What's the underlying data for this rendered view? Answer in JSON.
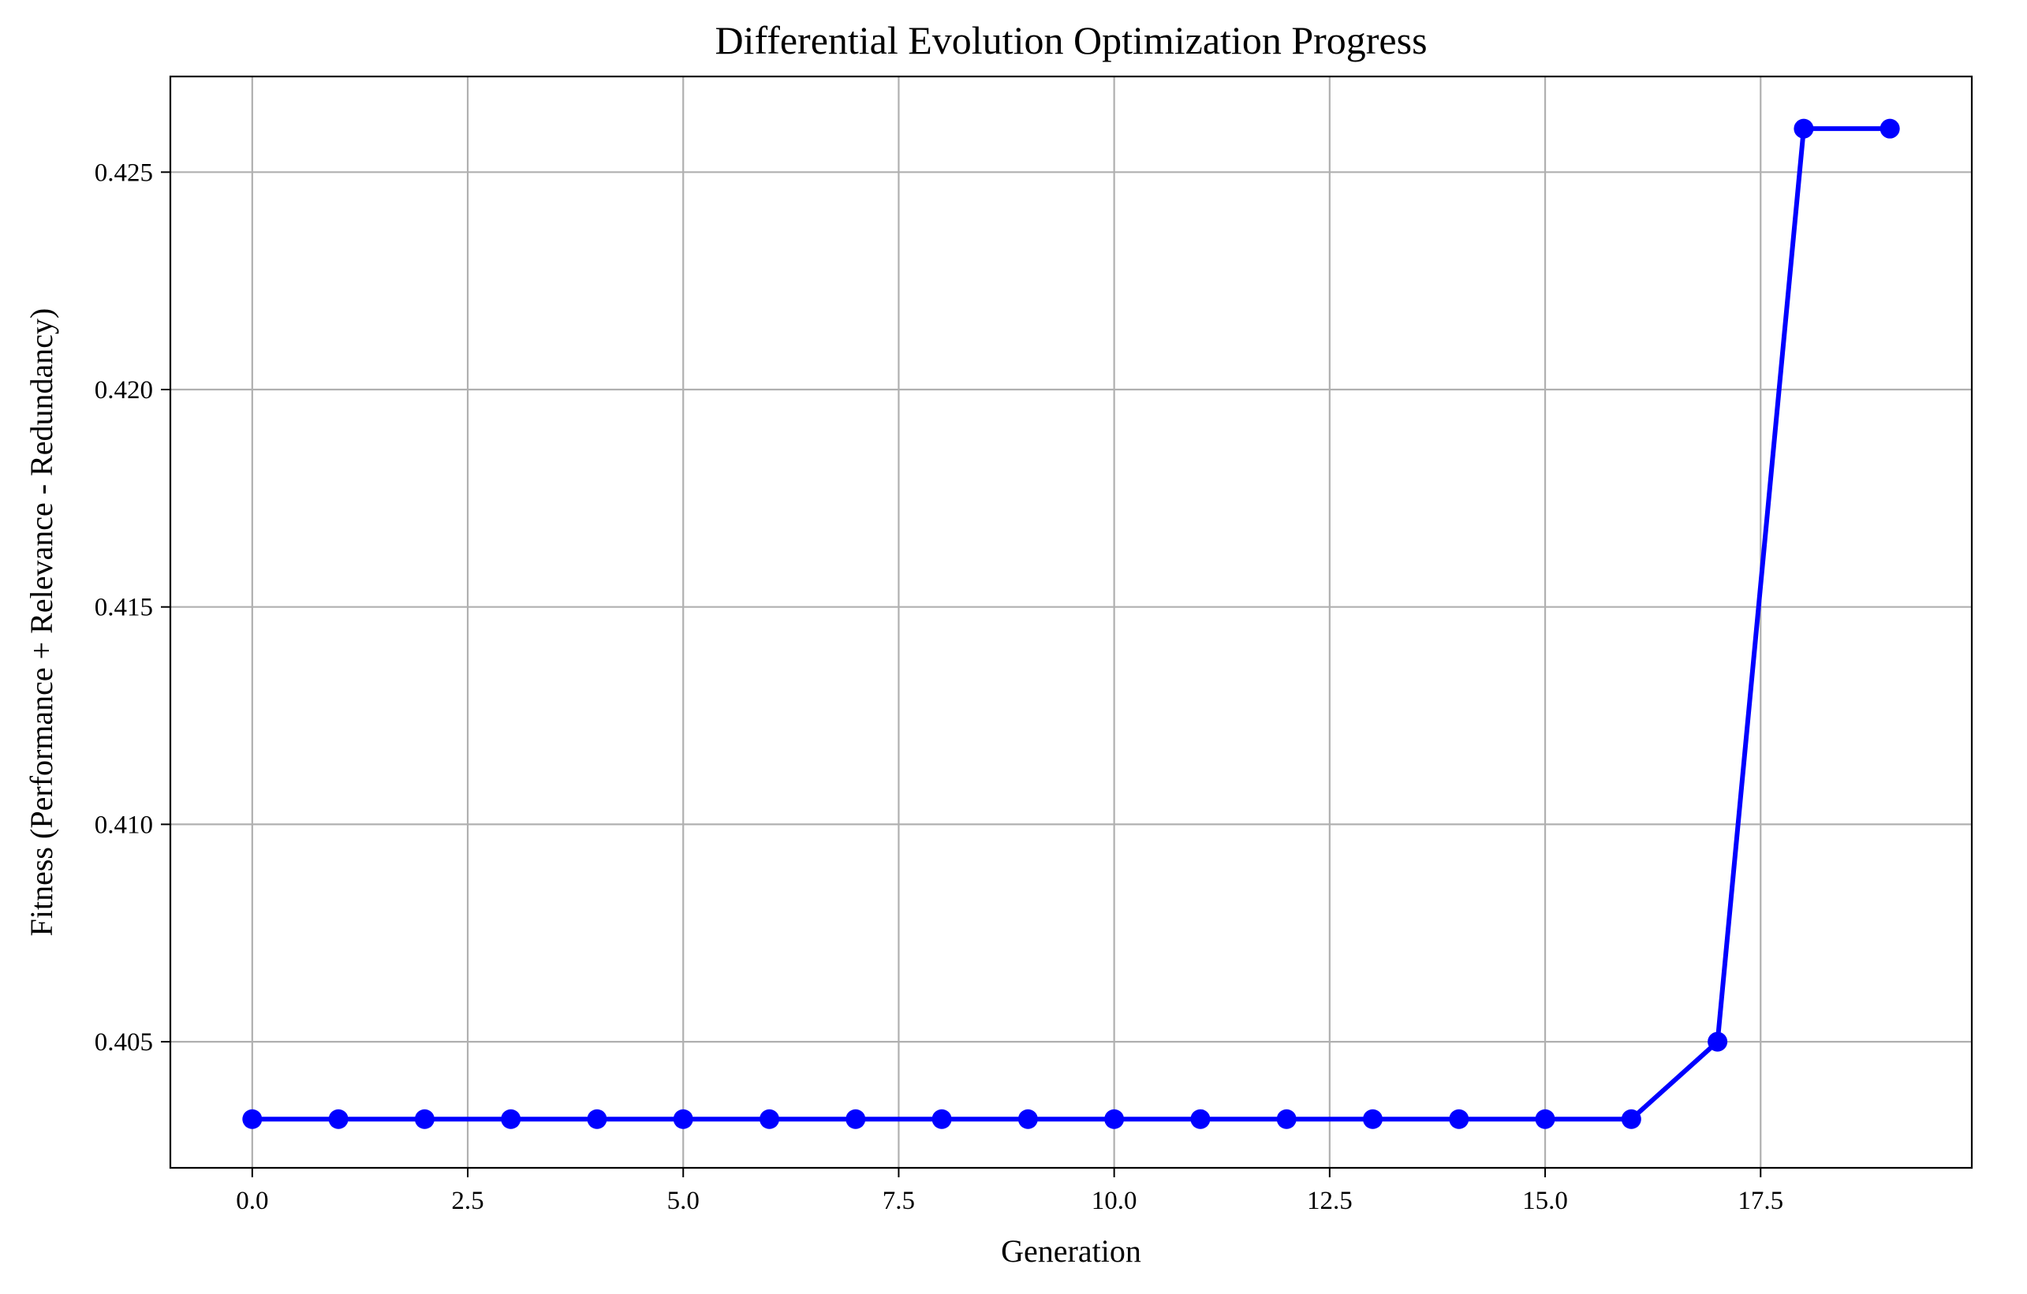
{
  "chart_data": {
    "type": "line",
    "title": "Differential Evolution Optimization Progress",
    "xlabel": "Generation",
    "ylabel": "Fitness (Performance + Relevance - Redundancy)",
    "xlim": [
      -0.95,
      19.95
    ],
    "ylim": [
      0.4021,
      0.4272
    ],
    "x_ticks": [
      0.0,
      2.5,
      5.0,
      7.5,
      10.0,
      12.5,
      15.0,
      17.5
    ],
    "x_tick_labels": [
      "0.0",
      "2.5",
      "5.0",
      "7.5",
      "10.0",
      "12.5",
      "15.0",
      "17.5"
    ],
    "y_ticks": [
      0.405,
      0.41,
      0.415,
      0.42,
      0.425
    ],
    "y_tick_labels": [
      "0.405",
      "0.410",
      "0.415",
      "0.420",
      "0.425"
    ],
    "grid": true,
    "series": [
      {
        "color": "#0000ff",
        "marker": "circle",
        "x": [
          0,
          1,
          2,
          3,
          4,
          5,
          6,
          7,
          8,
          9,
          10,
          11,
          12,
          13,
          14,
          15,
          16,
          17,
          18,
          19
        ],
        "y": [
          0.40322,
          0.40322,
          0.40322,
          0.40322,
          0.40322,
          0.40322,
          0.40322,
          0.40322,
          0.40322,
          0.40322,
          0.40322,
          0.40322,
          0.40322,
          0.40322,
          0.40322,
          0.40322,
          0.40322,
          0.405,
          0.426,
          0.426
        ]
      }
    ]
  }
}
